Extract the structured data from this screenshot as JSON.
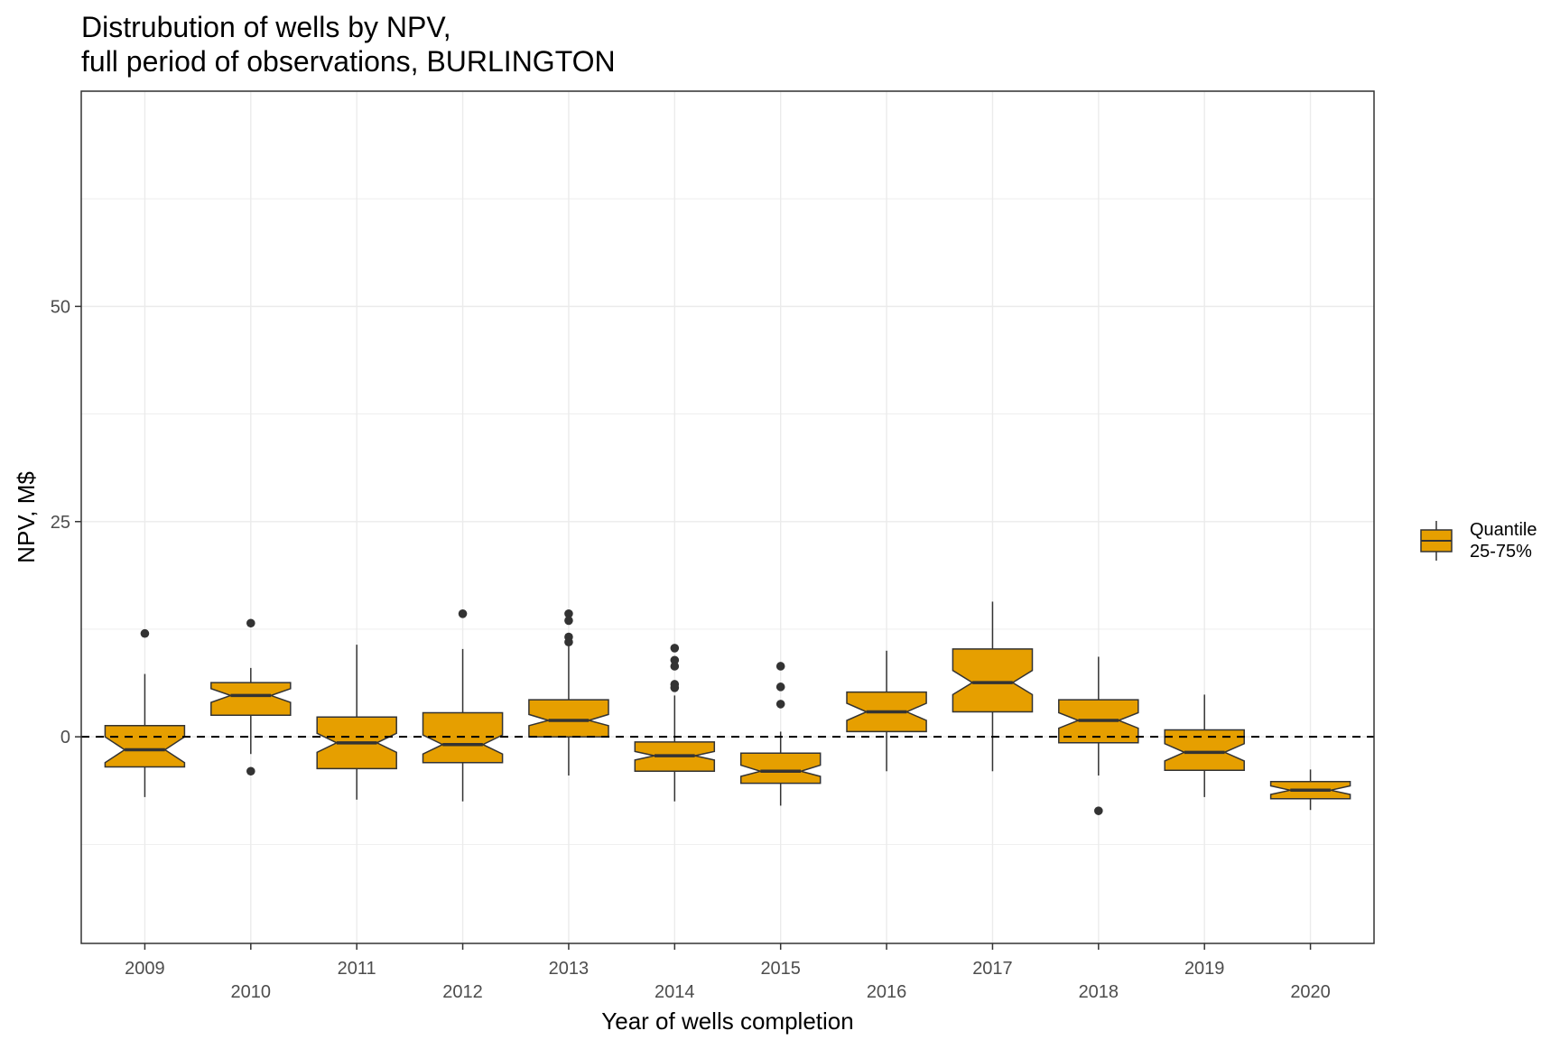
{
  "title_line1": "Distrubution of wells by NPV,",
  "title_line2": "full period of observations, BURLINGTON",
  "colors": {
    "box_fill": "#E69F00",
    "outline": "#333333",
    "grid": "#EBEBEB",
    "panel_border": "#333333",
    "reference_line": "#000000"
  },
  "chart_data": {
    "type": "boxplot",
    "notched": true,
    "xlabel": "Year of wells completion",
    "ylabel": "NPV, M$",
    "ylim": [
      -24,
      75
    ],
    "yticks": [
      0,
      25,
      50
    ],
    "grid": true,
    "reference_line": {
      "y": 0,
      "style": "dashed"
    },
    "legend": {
      "position": "right",
      "label": "Quantile\n25-75%"
    },
    "categories": [
      "2009",
      "2010",
      "2011",
      "2012",
      "2013",
      "2014",
      "2015",
      "2016",
      "2017",
      "2018",
      "2019",
      "2020"
    ],
    "boxes": [
      {
        "x": "2009",
        "lower_whisker": -7,
        "q1": -3.5,
        "median": -1.5,
        "q3": 1.3,
        "upper_whisker": 7.3,
        "notch_low": -3,
        "notch_high": 0,
        "outliers": [
          12
        ]
      },
      {
        "x": "2010",
        "lower_whisker": -2,
        "q1": 2.5,
        "median": 4.8,
        "q3": 6.3,
        "upper_whisker": 8,
        "notch_low": 4,
        "notch_high": 5.6,
        "outliers": [
          13.2,
          -4
        ]
      },
      {
        "x": "2011",
        "lower_whisker": -7.3,
        "q1": -3.7,
        "median": -0.7,
        "q3": 2.3,
        "upper_whisker": 10.7,
        "notch_low": -1.8,
        "notch_high": 0.4,
        "outliers": []
      },
      {
        "x": "2012",
        "lower_whisker": -7.5,
        "q1": -3,
        "median": -0.9,
        "q3": 2.8,
        "upper_whisker": 10.2,
        "notch_low": -2,
        "notch_high": 0.2,
        "outliers": [
          14.3
        ]
      },
      {
        "x": "2013",
        "lower_whisker": -4.5,
        "q1": 0,
        "median": 1.9,
        "q3": 4.3,
        "upper_whisker": 10.5,
        "notch_low": 1.3,
        "notch_high": 2.6,
        "outliers": [
          14.3,
          13.5,
          11.6,
          11
        ]
      },
      {
        "x": "2014",
        "lower_whisker": -7.5,
        "q1": -4,
        "median": -2.2,
        "q3": -0.6,
        "upper_whisker": 4.8,
        "notch_low": -2.7,
        "notch_high": -1.7,
        "outliers": [
          10.3,
          8.9,
          8.2,
          6.1,
          5.7
        ]
      },
      {
        "x": "2015",
        "lower_whisker": -8,
        "q1": -5.4,
        "median": -4,
        "q3": -1.9,
        "upper_whisker": 0.6,
        "notch_low": -4.6,
        "notch_high": -3.3,
        "outliers": [
          8.2,
          5.8,
          3.8
        ]
      },
      {
        "x": "2016",
        "lower_whisker": -4,
        "q1": 0.6,
        "median": 2.9,
        "q3": 5.2,
        "upper_whisker": 10,
        "notch_low": 1.9,
        "notch_high": 3.9,
        "outliers": []
      },
      {
        "x": "2017",
        "lower_whisker": -4,
        "q1": 2.9,
        "median": 6.3,
        "q3": 10.2,
        "upper_whisker": 15.7,
        "notch_low": 4.9,
        "notch_high": 7.7,
        "outliers": []
      },
      {
        "x": "2018",
        "lower_whisker": -4.5,
        "q1": -0.7,
        "median": 1.9,
        "q3": 4.3,
        "upper_whisker": 9.3,
        "notch_low": 1,
        "notch_high": 2.8,
        "outliers": [
          -8.6
        ]
      },
      {
        "x": "2019",
        "lower_whisker": -7,
        "q1": -3.9,
        "median": -1.8,
        "q3": 0.8,
        "upper_whisker": 4.9,
        "notch_low": -2.8,
        "notch_high": -0.8,
        "outliers": []
      },
      {
        "x": "2020",
        "lower_whisker": -8.5,
        "q1": -7.2,
        "median": -6.2,
        "q3": -5.2,
        "upper_whisker": -3.8,
        "notch_low": -6.7,
        "notch_high": -5.7,
        "outliers": []
      }
    ]
  }
}
